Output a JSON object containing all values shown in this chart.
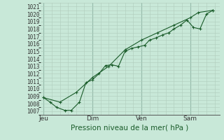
{
  "bg_color": "#c8e8d8",
  "grid_color": "#b0ccbc",
  "line_color": "#1a5c2a",
  "marker_color": "#1a5c2a",
  "xlabel": "Pression niveau de la mer( hPa )",
  "ylim": [
    1006.5,
    1021.5
  ],
  "yticks": [
    1007,
    1008,
    1009,
    1010,
    1011,
    1012,
    1013,
    1014,
    1015,
    1016,
    1017,
    1018,
    1019,
    1020,
    1021
  ],
  "xtick_labels": [
    "Jeu",
    "Dim",
    "Ven",
    "Sam"
  ],
  "xtick_positions": [
    0.0,
    3.0,
    6.0,
    9.0
  ],
  "vline_positions": [
    0.0,
    3.0,
    6.0,
    9.0
  ],
  "line1_x": [
    0.0,
    0.4,
    0.8,
    1.3,
    1.7,
    2.2,
    2.6,
    3.0,
    3.4,
    3.8,
    4.2,
    4.6,
    5.0,
    5.4,
    5.8,
    6.2,
    6.5,
    6.9,
    7.3,
    7.7,
    8.0,
    8.4,
    8.8,
    9.2,
    9.6,
    10.0,
    10.4
  ],
  "line1_y": [
    1008.8,
    1008.2,
    1007.5,
    1007.1,
    1007.1,
    1008.2,
    1010.8,
    1011.2,
    1012.0,
    1013.1,
    1013.2,
    1013.0,
    1015.0,
    1015.4,
    1015.6,
    1015.8,
    1016.5,
    1016.8,
    1017.2,
    1017.5,
    1018.0,
    1018.5,
    1019.2,
    1018.2,
    1018.0,
    1020.0,
    1020.5
  ],
  "line2_x": [
    0.0,
    1.0,
    2.0,
    3.0,
    4.0,
    5.0,
    6.0,
    7.0,
    8.0,
    9.0,
    9.5,
    10.4
  ],
  "line2_y": [
    1008.8,
    1008.2,
    1009.5,
    1011.5,
    1013.0,
    1015.2,
    1016.5,
    1017.5,
    1018.5,
    1019.5,
    1020.2,
    1020.5
  ],
  "xlim": [
    -0.2,
    10.8
  ],
  "total_x": 10.8,
  "xlabel_fontsize": 7.5,
  "xlabel_color": "#1a5c2a",
  "ytick_fontsize": 5.5,
  "xtick_fontsize": 6.5
}
